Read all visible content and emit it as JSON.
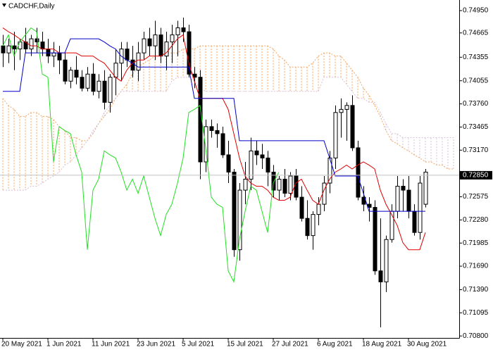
{
  "chart_data": {
    "type": "candlestick",
    "title": "CADCHF,Daily",
    "categories": [
      "20 May 2021",
      null,
      null,
      null,
      null,
      null,
      null,
      null,
      "1 Jun 2021",
      null,
      null,
      null,
      null,
      null,
      null,
      null,
      "11 Jun 2021",
      null,
      null,
      null,
      null,
      null,
      null,
      null,
      "23 Jun 2021",
      null,
      null,
      null,
      null,
      null,
      null,
      null,
      "5 Jul 2021",
      null,
      null,
      null,
      null,
      null,
      null,
      null,
      "15 Jul 2021",
      null,
      null,
      null,
      null,
      null,
      null,
      null,
      "27 Jul 2021",
      null,
      null,
      null,
      null,
      null,
      null,
      null,
      "6 Aug 2021",
      null,
      null,
      null,
      null,
      null,
      null,
      null,
      "18 Aug 2021",
      null,
      null,
      null,
      null,
      null,
      null,
      null,
      "30 Aug 2021",
      null,
      null,
      null,
      null,
      null,
      null,
      null,
      null
    ],
    "open": [
      0.745,
      0.7441,
      0.745,
      0.7446,
      0.7455,
      0.7446,
      0.7459,
      0.7455,
      0.7446,
      0.7437,
      0.7441,
      0.7432,
      0.7405,
      0.7419,
      0.741,
      0.7396,
      0.7414,
      0.7392,
      0.7405,
      0.7378,
      0.741,
      0.7428,
      0.7446,
      0.7432,
      0.7419,
      0.7441,
      0.7459,
      0.745,
      0.7464,
      0.7437,
      0.7455,
      0.7464,
      0.7473,
      0.7468,
      0.7414,
      0.741,
      0.7302,
      0.7347,
      0.7342,
      0.7338,
      0.7311,
      0.7289,
      0.719,
      0.7266,
      0.728,
      0.7316,
      0.7311,
      0.7307,
      0.7289,
      0.7266,
      0.728,
      0.7262,
      0.7284,
      0.7257,
      0.723,
      0.7208,
      0.7235,
      0.7248,
      0.7275,
      0.7307,
      0.7365,
      0.7369,
      0.7374,
      0.732,
      0.7257,
      0.7248,
      0.7244,
      0.7163,
      0.7149,
      0.7203,
      0.7239,
      0.7271,
      0.7266,
      0.7239,
      0.7212,
      0.7248,
      null,
      null,
      null,
      null,
      null
    ],
    "high": [
      0.7464,
      0.7459,
      0.7468,
      0.7459,
      0.7473,
      0.7464,
      0.7473,
      0.7468,
      0.7459,
      0.7455,
      0.745,
      0.7441,
      0.7423,
      0.7437,
      0.7419,
      0.7423,
      0.7428,
      0.7414,
      0.7419,
      0.7414,
      0.7446,
      0.7455,
      0.7455,
      0.745,
      0.7455,
      0.7468,
      0.7473,
      0.7482,
      0.7473,
      0.7468,
      0.7477,
      0.7482,
      0.7486,
      0.7477,
      0.7423,
      0.7419,
      0.7356,
      0.7356,
      0.7351,
      0.7347,
      0.7329,
      0.7293,
      0.7275,
      0.7302,
      0.7333,
      0.7329,
      0.7325,
      0.7316,
      0.7298,
      0.7284,
      0.7293,
      0.7289,
      0.7293,
      0.7271,
      0.7253,
      0.7239,
      0.7257,
      0.7284,
      0.7316,
      0.7374,
      0.7383,
      0.7378,
      0.7387,
      0.7329,
      0.7271,
      0.7257,
      0.7253,
      0.723,
      0.7208,
      0.7248,
      0.7284,
      0.728,
      0.7284,
      0.7248,
      0.7284,
      0.7293,
      null,
      null,
      null,
      null,
      null
    ],
    "low": [
      0.7423,
      0.7428,
      0.7419,
      0.7432,
      0.7441,
      0.7437,
      0.7441,
      0.7437,
      0.7428,
      0.7423,
      0.7414,
      0.7401,
      0.7396,
      0.7401,
      0.7392,
      0.7392,
      0.7387,
      0.7383,
      0.7369,
      0.7365,
      0.7387,
      0.7405,
      0.7423,
      0.741,
      0.7405,
      0.7432,
      0.7437,
      0.7432,
      0.7428,
      0.7419,
      0.7428,
      0.7437,
      0.7455,
      0.741,
      0.7396,
      0.728,
      0.7289,
      0.7333,
      0.732,
      0.7307,
      0.7275,
      0.7181,
      0.7176,
      0.7248,
      0.7266,
      0.7298,
      0.7293,
      0.7271,
      0.7257,
      0.7253,
      0.7257,
      0.7253,
      0.7253,
      0.7226,
      0.7203,
      0.719,
      0.7221,
      0.7239,
      0.7262,
      0.7293,
      0.7333,
      0.7329,
      0.7316,
      0.7253,
      0.7239,
      0.7226,
      0.7158,
      0.7091,
      0.7136,
      0.7199,
      0.723,
      0.7239,
      0.723,
      0.7208,
      0.7203,
      0.7244,
      null,
      null,
      null,
      null,
      null
    ],
    "close": [
      0.7441,
      0.745,
      0.7446,
      0.7455,
      0.7446,
      0.7459,
      0.7455,
      0.7446,
      0.7437,
      0.7441,
      0.7432,
      0.7405,
      0.7419,
      0.741,
      0.7396,
      0.7414,
      0.7392,
      0.7405,
      0.7378,
      0.741,
      0.7428,
      0.7446,
      0.7432,
      0.7419,
      0.7441,
      0.7459,
      0.745,
      0.7464,
      0.7437,
      0.7455,
      0.7464,
      0.7473,
      0.7468,
      0.7414,
      0.741,
      0.7302,
      0.7347,
      0.7342,
      0.7338,
      0.7311,
      0.7289,
      0.719,
      0.7266,
      0.728,
      0.7316,
      0.7311,
      0.7307,
      0.7289,
      0.7266,
      0.728,
      0.7262,
      0.7284,
      0.7257,
      0.723,
      0.7208,
      0.7235,
      0.7248,
      0.7275,
      0.7307,
      0.7365,
      0.7369,
      0.7374,
      0.732,
      0.7257,
      0.7248,
      0.7244,
      0.7163,
      0.7149,
      0.7203,
      0.7239,
      0.7271,
      0.7266,
      0.7239,
      0.7212,
      0.7275,
      0.7289,
      null,
      null,
      null,
      null,
      null
    ],
    "up_color": "#ffffff",
    "down_color": "#000000",
    "cloud": [
      {
        "color": "#f4a460",
        "values": [
          0.7383,
          0.7374,
          0.7369,
          0.736,
          0.736,
          0.7365,
          0.7365,
          0.736,
          0.736,
          0.7356,
          0.7347,
          0.7342,
          0.7333,
          0.7333,
          0.7329,
          0.7329,
          0.7338,
          0.7351,
          0.736,
          0.7369,
          0.7383,
          0.7392,
          0.7401,
          0.7414,
          0.7423,
          0.7428,
          0.7432,
          0.7437,
          0.7437,
          0.7441,
          0.7441,
          0.7441,
          0.7446,
          0.7446,
          0.7446,
          0.745,
          0.745,
          0.745,
          0.745,
          0.745,
          0.745,
          0.745,
          0.745,
          0.745,
          0.745,
          0.745,
          0.745,
          0.745,
          0.7446,
          0.7437,
          0.7432,
          0.7423,
          0.7423,
          0.7423,
          0.7423,
          0.7428,
          0.7437,
          0.7441,
          0.7441,
          0.7437,
          0.7437,
          0.7428,
          0.7419,
          0.741,
          0.7396,
          0.7387,
          0.7374,
          0.736,
          0.7342,
          0.7329,
          0.7325,
          0.732,
          0.7316,
          0.7311,
          0.7307,
          0.7302,
          0.7302,
          0.7298,
          0.7298,
          0.7293,
          0.7293
        ]
      },
      {
        "color": "#d8bfd8",
        "values": [
          0.7266,
          0.7266,
          0.7266,
          0.7266,
          0.7266,
          0.7271,
          0.7271,
          0.7275,
          0.728,
          0.7284,
          0.7289,
          0.7298,
          0.7302,
          0.7311,
          0.732,
          0.7329,
          0.7342,
          0.7351,
          0.7365,
          0.7374,
          0.7383,
          0.7392,
          0.7392,
          0.7392,
          0.7392,
          0.7392,
          0.7392,
          0.7392,
          0.7392,
          0.7392,
          0.7405,
          0.741,
          0.741,
          0.741,
          0.7405,
          0.7396,
          0.7392,
          0.7392,
          0.7392,
          0.7392,
          0.7392,
          0.7392,
          0.7392,
          0.7392,
          0.7392,
          0.7392,
          0.7392,
          0.7392,
          0.7392,
          0.7392,
          0.7392,
          0.7392,
          0.7392,
          0.7392,
          0.7392,
          0.7392,
          0.7392,
          0.741,
          0.741,
          0.741,
          0.741,
          0.7401,
          0.7392,
          0.7383,
          0.7383,
          0.7378,
          0.7378,
          0.7365,
          0.7351,
          0.7338,
          0.7338,
          0.7333,
          0.7333,
          0.7333,
          0.7333,
          0.7333,
          0.7333,
          0.7333,
          0.7333,
          0.7333,
          0.7333
        ]
      }
    ],
    "lines": [
      {
        "color": "#e00000",
        "values": [
          0.7473,
          0.7468,
          0.7464,
          0.7459,
          0.7455,
          0.745,
          0.745,
          0.7446,
          0.7446,
          0.7446,
          0.7441,
          0.7441,
          0.7441,
          0.7441,
          0.7437,
          0.7437,
          0.7437,
          0.7432,
          0.7428,
          0.7419,
          0.741,
          0.7405,
          0.7419,
          0.7428,
          0.7432,
          0.7432,
          0.7437,
          0.7437,
          0.7437,
          0.7441,
          0.745,
          0.7459,
          0.7464,
          0.7428,
          0.7405,
          0.7383,
          0.7383,
          0.7383,
          0.7383,
          0.7383,
          0.7369,
          0.7338,
          0.7307,
          0.7284,
          0.7275,
          0.7271,
          0.7271,
          0.7266,
          0.7257,
          0.7253,
          0.7253,
          0.7257,
          0.7275,
          0.728,
          0.7266,
          0.7253,
          0.7248,
          0.7266,
          0.728,
          0.7289,
          0.7293,
          0.7298,
          0.7293,
          0.7298,
          0.7302,
          0.7298,
          0.7293,
          0.7266,
          0.7248,
          0.7235,
          0.7221,
          0.7199,
          0.719,
          0.719,
          0.719,
          0.7212,
          null,
          null,
          null,
          null,
          null
        ]
      },
      {
        "color": "#0000c8",
        "values": [
          0.7392,
          0.7392,
          0.7392,
          0.7392,
          0.7441,
          0.7441,
          0.7441,
          0.7441,
          0.7441,
          0.7441,
          0.7441,
          0.7441,
          0.7459,
          0.7459,
          0.7459,
          0.7459,
          0.7459,
          0.7459,
          0.7455,
          0.745,
          0.7446,
          0.7437,
          0.7432,
          0.7428,
          0.7423,
          0.7423,
          0.7423,
          0.7423,
          0.7423,
          0.7423,
          0.7423,
          0.7423,
          0.7423,
          0.7423,
          0.7383,
          0.7383,
          0.7383,
          0.7383,
          0.7383,
          0.7383,
          0.7383,
          0.7383,
          0.7329,
          0.7329,
          0.7329,
          0.7329,
          0.7329,
          0.7329,
          0.7329,
          0.7329,
          0.7329,
          0.7329,
          0.7329,
          0.7329,
          0.7329,
          0.7329,
          0.7329,
          0.7329,
          0.7307,
          0.7284,
          0.7284,
          0.7284,
          0.7284,
          0.7284,
          0.7262,
          0.7239,
          0.7239,
          0.7239,
          0.7239,
          0.7239,
          0.7239,
          0.7239,
          0.7239,
          0.7239,
          0.7239,
          0.7239,
          null,
          null,
          null,
          null,
          null
        ]
      },
      {
        "color": "#22e022",
        "values": [
          0.745,
          0.7464,
          0.7437,
          0.7455,
          0.7464,
          0.7473,
          0.7468,
          0.7414,
          0.741,
          0.7302,
          0.7347,
          0.7342,
          0.7338,
          0.7311,
          0.7289,
          0.719,
          0.7266,
          0.728,
          0.7316,
          0.7311,
          0.7307,
          0.7289,
          0.7266,
          0.728,
          0.7262,
          0.7284,
          0.7257,
          0.723,
          0.7208,
          0.7235,
          0.7248,
          0.7275,
          0.7307,
          0.7365,
          0.7369,
          0.7374,
          0.732,
          0.7257,
          0.7248,
          0.7244,
          0.7163,
          0.7149,
          0.7203,
          0.7239,
          0.7271,
          0.7266,
          0.7239,
          0.7212,
          0.7275,
          0.7289,
          null,
          null,
          null,
          null,
          null,
          null,
          null,
          null,
          null,
          null,
          null,
          null,
          null,
          null,
          null,
          null,
          null,
          null,
          null,
          null,
          null,
          null,
          null,
          null,
          null,
          null,
          null,
          null,
          null,
          null,
          null
        ]
      }
    ],
    "current_price": {
      "value": 0.7285,
      "label": "0.72850",
      "color": "#c0c0c0"
    },
    "ylim": [
      0.70775,
      0.75085
    ],
    "yticks": [
      {
        "value": 0.7495,
        "label": "0.74950"
      },
      0.74665,
      0.74355,
      0.74055,
      {
        "value": 0.7376,
        "label": "0.73760"
      },
      0.73465,
      {
        "value": 0.7317,
        "label": "0.73170"
      },
      0.72575,
      {
        "value": 0.7228,
        "label": "0.72280"
      },
      0.71985,
      {
        "value": 0.7169,
        "label": "0.71690"
      },
      {
        "value": 0.7139,
        "label": "0.71390"
      },
      0.71095,
      {
        "value": 0.708,
        "label": "0.70800"
      }
    ]
  }
}
